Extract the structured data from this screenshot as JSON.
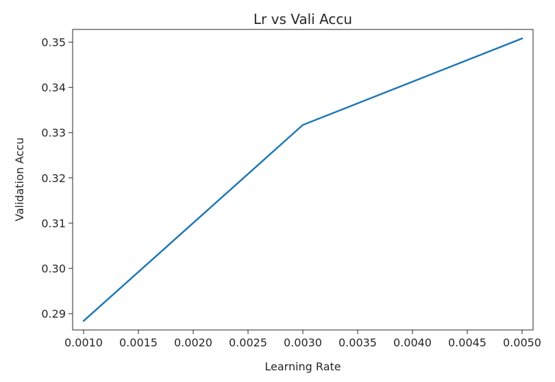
{
  "chart_data": {
    "type": "line",
    "title": "Lr vs Vali Accu",
    "xlabel": "Learning Rate",
    "ylabel": "Validation Accu",
    "x": [
      0.001,
      0.003,
      0.005
    ],
    "series": [
      {
        "values": [
          0.2884,
          0.3317,
          0.3508
        ],
        "color": "#1f77b4"
      }
    ],
    "xlim": [
      0.0009,
      0.0051
    ],
    "ylim": [
      0.2864,
      0.3528
    ],
    "xticks": [
      0.001,
      0.0015,
      0.002,
      0.0025,
      0.003,
      0.0035,
      0.004,
      0.0045,
      0.005
    ],
    "xtick_labels": [
      "0.0010",
      "0.0015",
      "0.0020",
      "0.0025",
      "0.0030",
      "0.0035",
      "0.0040",
      "0.0045",
      "0.0050"
    ],
    "yticks": [
      0.29,
      0.3,
      0.31,
      0.32,
      0.33,
      0.34,
      0.35
    ],
    "ytick_labels": [
      "0.29",
      "0.30",
      "0.31",
      "0.32",
      "0.33",
      "0.34",
      "0.35"
    ],
    "grid": false,
    "legend": "none"
  }
}
